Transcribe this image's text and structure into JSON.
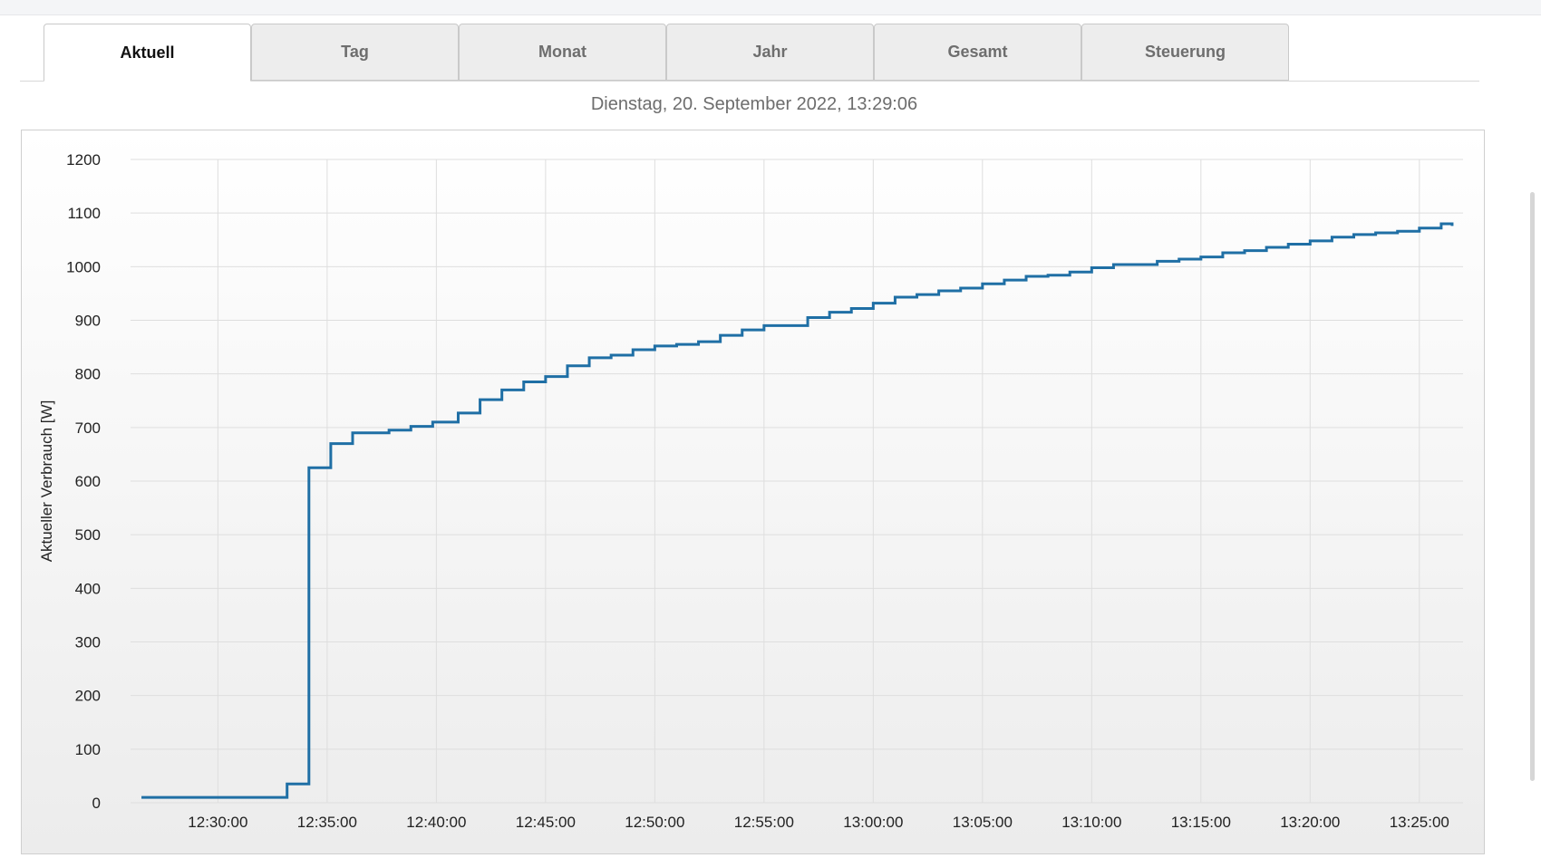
{
  "tabs": [
    {
      "label": "Aktuell",
      "active": true
    },
    {
      "label": "Tag",
      "active": false
    },
    {
      "label": "Monat",
      "active": false
    },
    {
      "label": "Jahr",
      "active": false
    },
    {
      "label": "Gesamt",
      "active": false
    },
    {
      "label": "Steuerung",
      "active": false
    }
  ],
  "timestamp": "Dienstag, 20. September 2022, 13:29:06",
  "colors": {
    "line": "#1f6fa5",
    "grid": "#dedede"
  },
  "chart_data": {
    "type": "line",
    "step": true,
    "ylabel": "Aktueller Verbrauch [W]",
    "xlabel": "",
    "ylim": [
      0,
      1200
    ],
    "yticks": [
      0,
      100,
      200,
      300,
      400,
      500,
      600,
      700,
      800,
      900,
      1000,
      1100,
      1200
    ],
    "xlim": [
      "12:26:00",
      "13:27:00"
    ],
    "xticks": [
      "12:30:00",
      "12:35:00",
      "12:40:00",
      "12:45:00",
      "12:50:00",
      "12:55:00",
      "13:00:00",
      "13:05:00",
      "13:10:00",
      "13:15:00",
      "13:20:00",
      "13:25:00"
    ],
    "grid": true,
    "series": [
      {
        "x": [
          "12:26:30",
          "12:33:10",
          "12:34:10",
          "12:35:10",
          "12:36:10",
          "12:37:50",
          "12:38:50",
          "12:39:50",
          "12:41:00",
          "12:42:00",
          "12:43:00",
          "12:44:00",
          "12:45:00",
          "12:46:00",
          "12:47:00",
          "12:48:00",
          "12:49:00",
          "12:50:00",
          "12:51:00",
          "12:52:00",
          "12:53:00",
          "12:54:00",
          "12:55:00",
          "12:57:00",
          "12:58:00",
          "12:59:00",
          "13:00:00",
          "13:01:00",
          "13:02:00",
          "13:03:00",
          "13:04:00",
          "13:05:00",
          "13:06:00",
          "13:07:00",
          "13:08:00",
          "13:09:00",
          "13:10:00",
          "13:11:00",
          "13:13:00",
          "13:14:00",
          "13:15:00",
          "13:16:00",
          "13:17:00",
          "13:18:00",
          "13:19:00",
          "13:20:00",
          "13:21:00",
          "13:22:00",
          "13:23:00",
          "13:24:00",
          "13:25:00",
          "13:26:00",
          "13:26:30"
        ],
        "values": [
          10,
          35,
          625,
          670,
          690,
          695,
          702,
          710,
          727,
          752,
          770,
          785,
          795,
          815,
          830,
          835,
          845,
          852,
          855,
          860,
          872,
          882,
          890,
          905,
          915,
          922,
          932,
          943,
          948,
          955,
          960,
          968,
          975,
          982,
          984,
          990,
          998,
          1004,
          1010,
          1014,
          1018,
          1026,
          1030,
          1036,
          1042,
          1048,
          1055,
          1060,
          1063,
          1066,
          1072,
          1080,
          1076
        ]
      }
    ]
  }
}
